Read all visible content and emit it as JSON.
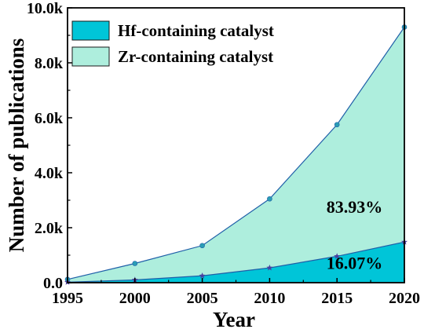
{
  "chart_data": {
    "type": "area",
    "xlabel": "Year",
    "ylabel": "Number of publications",
    "xlim": [
      1995,
      2020
    ],
    "ylim": [
      0,
      10000
    ],
    "x": [
      1995,
      2000,
      2005,
      2010,
      2015,
      2020
    ],
    "x_tick_labels": [
      "1995",
      "2000",
      "2005",
      "2010",
      "2015",
      "2020"
    ],
    "y_ticks": [
      0,
      2000,
      4000,
      6000,
      8000,
      10000
    ],
    "y_tick_labels": [
      "0.0",
      "2.0k",
      "4.0k",
      "6.0k",
      "8.0k",
      "10.0k"
    ],
    "stacked": false,
    "series": [
      {
        "name": "Zr-containing catalyst",
        "values": [
          120,
          700,
          1350,
          3050,
          5750,
          9300
        ],
        "color": "#aeeedd",
        "line_color": "#1f5fa8",
        "marker": "circle",
        "marker_color": "#2a9db5"
      },
      {
        "name": "Hf-containing catalyst",
        "values": [
          20,
          100,
          250,
          540,
          960,
          1480
        ],
        "color": "#00c5d8",
        "line_color": "#1f5fa8",
        "marker": "star",
        "marker_color": "#4a3fa0"
      }
    ],
    "annotations": [
      {
        "text": "83.93%",
        "x": 2016.3,
        "y": 2550
      },
      {
        "text": "16.07%",
        "x": 2016.3,
        "y": 500
      }
    ],
    "legend_position": "top-left",
    "grid": false
  }
}
